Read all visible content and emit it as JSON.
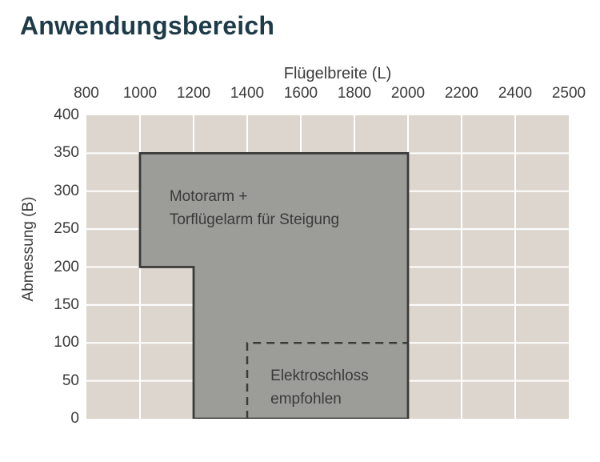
{
  "page": {
    "title": "Anwendungsbereich"
  },
  "colors": {
    "title_text": "#1e3b48",
    "axis_text": "#3b3b3b",
    "plot_background": "#dcd6ce",
    "gridline": "#ffffff",
    "region_fill": "#9c9c98",
    "region_stroke": "#3a3a38",
    "region_label_text": "#3a3a3a"
  },
  "chart_data": {
    "type": "area",
    "title": "Anwendungsbereich",
    "xlabel": "Flügelbreite (L)",
    "ylabel": "Abmessung (B)",
    "x_ticks": [
      800,
      1000,
      1200,
      1400,
      1600,
      1800,
      2000,
      2200,
      2400,
      2500
    ],
    "y_ticks": [
      0,
      50,
      100,
      150,
      200,
      250,
      300,
      350,
      400
    ],
    "x_axis_note": "ticks evenly spaced, last interval 2400-2500 same width as 200-unit intervals",
    "grid": "on",
    "legend": "none",
    "regions": [
      {
        "name": "motorarm-region",
        "label_lines": [
          "Motorarm +",
          "Torflügelarm für Steigung"
        ],
        "label_anchor": {
          "x": 1110,
          "y": 308
        },
        "style": "solid",
        "polygon": [
          [
            1000,
            350
          ],
          [
            2000,
            350
          ],
          [
            2000,
            0
          ],
          [
            1200,
            0
          ],
          [
            1200,
            200
          ],
          [
            1000,
            200
          ]
        ]
      },
      {
        "name": "elektroschloss-region",
        "label_lines": [
          "Elektroschloss",
          "empfohlen"
        ],
        "label_anchor": {
          "x": 1487,
          "y": 72
        },
        "style": "dashed",
        "bounds": {
          "x": [
            1400,
            2000
          ],
          "y": [
            0,
            100
          ]
        },
        "polyline": [
          [
            1400,
            0
          ],
          [
            1400,
            100
          ],
          [
            2000,
            100
          ]
        ]
      }
    ]
  }
}
